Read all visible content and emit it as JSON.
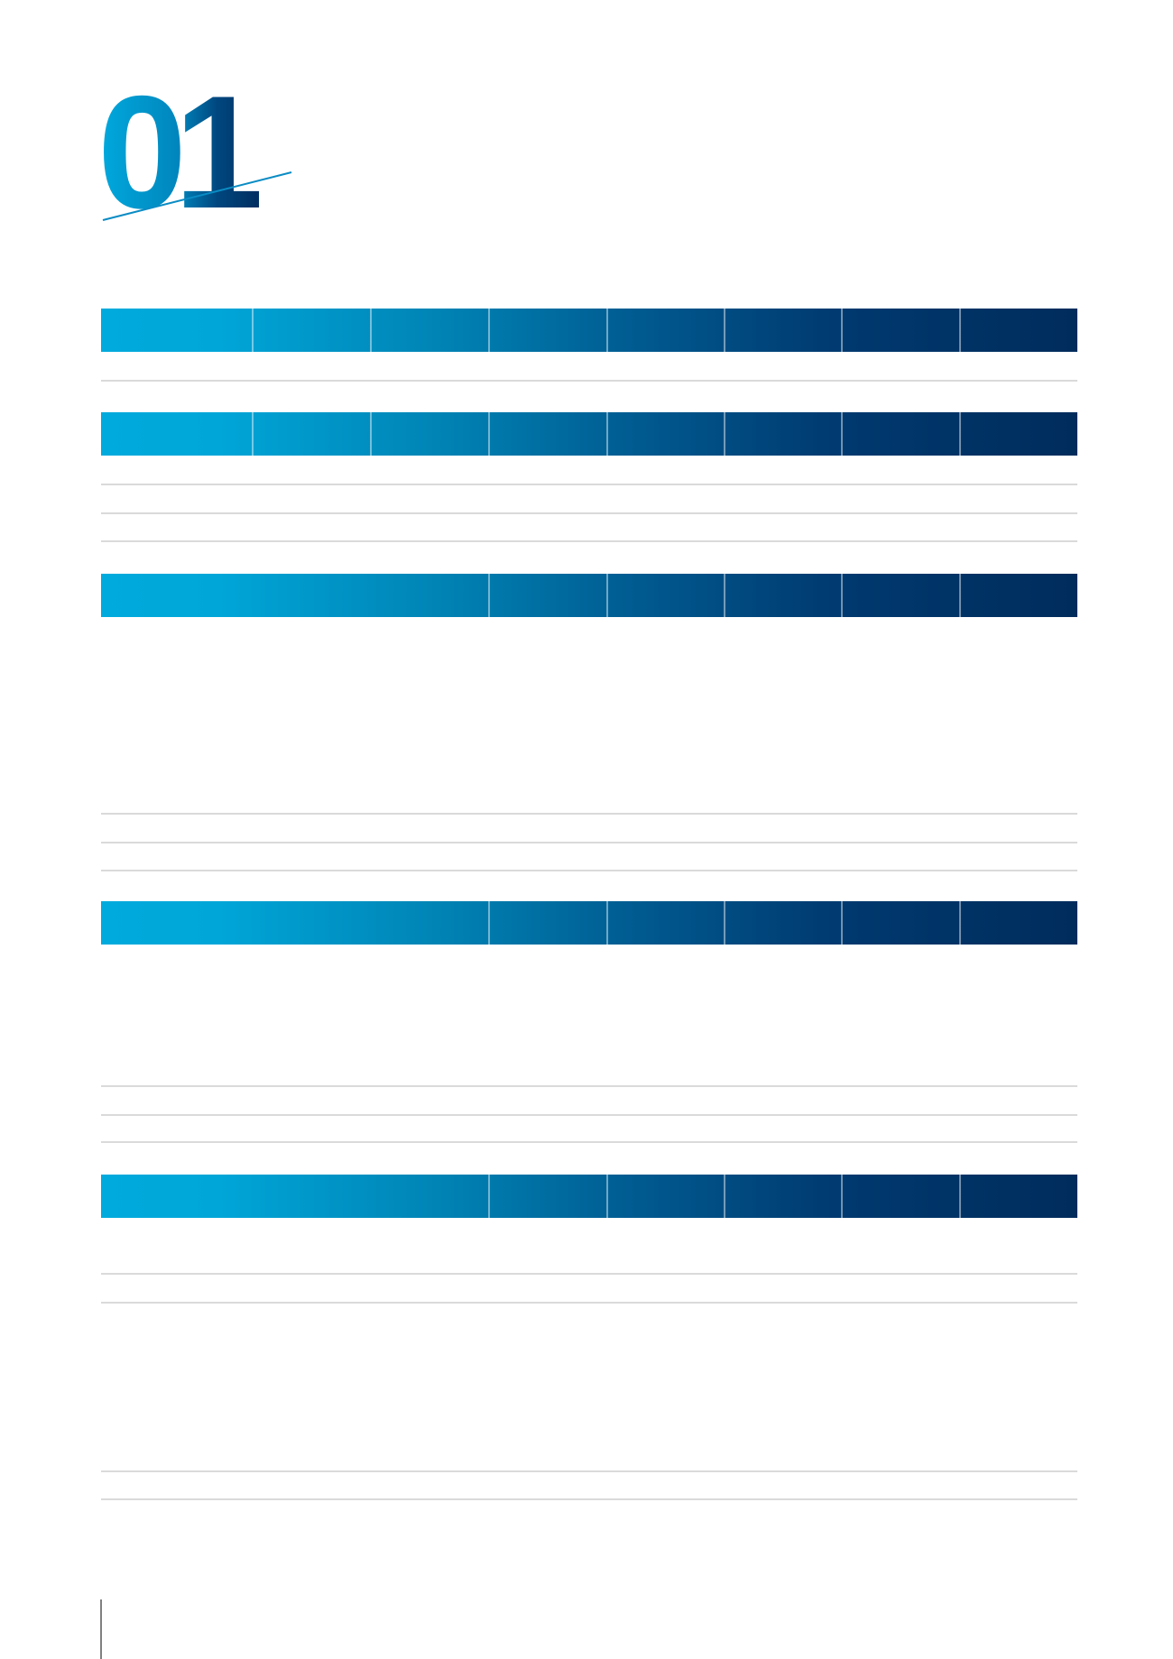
{
  "header": {
    "number": "01"
  }
}
